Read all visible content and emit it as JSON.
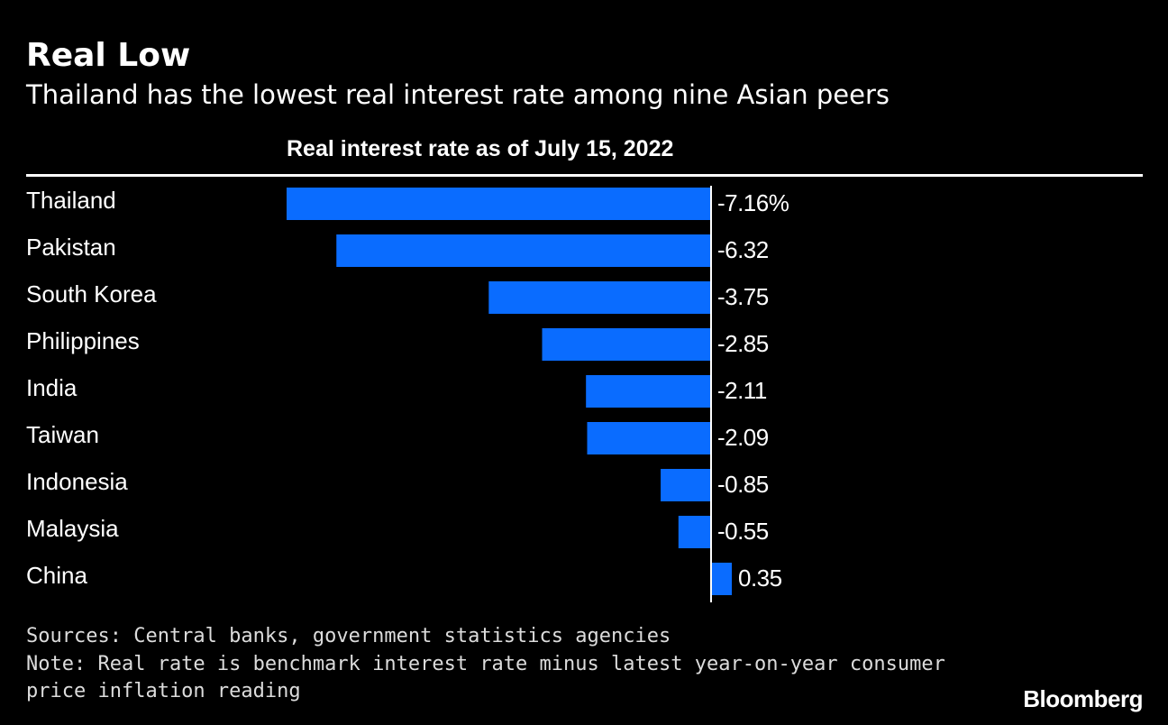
{
  "header": {
    "title": "Real Low",
    "subtitle": "Thailand has the lowest real interest rate among nine Asian peers"
  },
  "chart_data": {
    "type": "bar",
    "orientation": "horizontal",
    "title": "Real interest rate as of July 15, 2022",
    "categories": [
      "Thailand",
      "Pakistan",
      "South Korea",
      "Philippines",
      "India",
      "Taiwan",
      "Indonesia",
      "Malaysia",
      "China"
    ],
    "values": [
      -7.16,
      -6.32,
      -3.75,
      -2.85,
      -2.11,
      -2.09,
      -0.85,
      -0.55,
      0.35
    ],
    "value_labels": [
      "-7.16%",
      "-6.32",
      "-3.75",
      "-2.85",
      "-2.11",
      "-2.09",
      "-0.85",
      "-0.55",
      "0.35"
    ],
    "unit": "%",
    "xlim": [
      -7.16,
      0.35
    ],
    "bar_color": "#0a6cff",
    "xlabel": "",
    "ylabel": ""
  },
  "footer": {
    "sources": "Sources: Central banks, government statistics agencies",
    "note_line1": "Note: Real rate is benchmark interest rate minus latest year-on-year consumer",
    "note_line2": "price inflation reading",
    "brand": "Bloomberg"
  }
}
